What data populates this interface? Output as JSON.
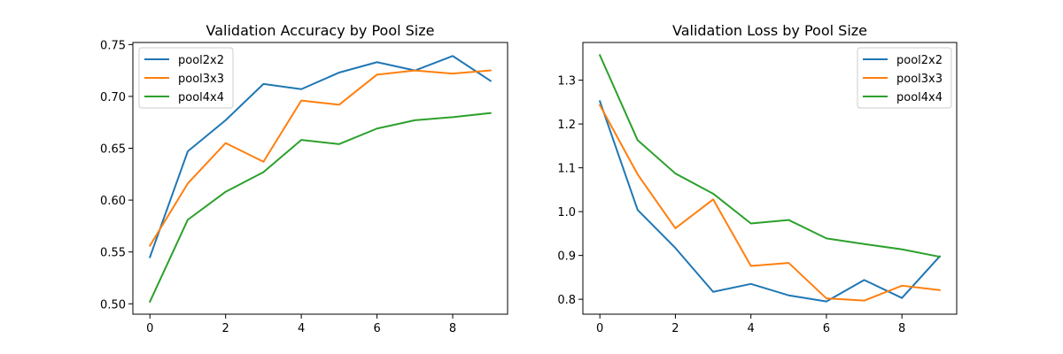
{
  "chart_data": [
    {
      "type": "line",
      "title": "Validation Accuracy by Pool Size",
      "xlabel": "",
      "ylabel": "",
      "x": [
        0,
        1,
        2,
        3,
        4,
        5,
        6,
        7,
        8,
        9
      ],
      "xlim": [
        -0.45,
        9.45
      ],
      "ylim": [
        0.49,
        0.752
      ],
      "xticks": [
        0,
        2,
        4,
        6,
        8
      ],
      "yticks": [
        0.5,
        0.55,
        0.6,
        0.65,
        0.7,
        0.75
      ],
      "ytick_labels": [
        "0.50",
        "0.55",
        "0.60",
        "0.65",
        "0.70",
        "0.75"
      ],
      "grid": false,
      "legend_position": "upper-left",
      "series": [
        {
          "name": "pool2x2",
          "color": "#1f77b4",
          "values": [
            0.545,
            0.647,
            0.677,
            0.712,
            0.707,
            0.723,
            0.733,
            0.725,
            0.739,
            0.715
          ]
        },
        {
          "name": "pool3x3",
          "color": "#ff7f0e",
          "values": [
            0.556,
            0.616,
            0.655,
            0.637,
            0.696,
            0.692,
            0.721,
            0.725,
            0.722,
            0.725
          ]
        },
        {
          "name": "pool4x4",
          "color": "#2ca02c",
          "values": [
            0.502,
            0.581,
            0.608,
            0.627,
            0.658,
            0.654,
            0.669,
            0.677,
            0.68,
            0.684
          ]
        }
      ]
    },
    {
      "type": "line",
      "title": "Validation Loss by Pool Size",
      "xlabel": "",
      "ylabel": "",
      "x": [
        0,
        1,
        2,
        3,
        4,
        5,
        6,
        7,
        8,
        9
      ],
      "xlim": [
        -0.45,
        9.45
      ],
      "ylim": [
        0.766,
        1.386
      ],
      "xticks": [
        0,
        2,
        4,
        6,
        8
      ],
      "yticks": [
        0.8,
        0.9,
        1.0,
        1.1,
        1.2,
        1.3
      ],
      "ytick_labels": [
        "0.8",
        "0.9",
        "1.0",
        "1.1",
        "1.2",
        "1.3"
      ],
      "grid": false,
      "legend_position": "upper-right",
      "series": [
        {
          "name": "pool2x2",
          "color": "#1f77b4",
          "values": [
            1.252,
            1.004,
            0.917,
            0.817,
            0.835,
            0.809,
            0.795,
            0.844,
            0.803,
            0.898
          ]
        },
        {
          "name": "pool3x3",
          "color": "#ff7f0e",
          "values": [
            1.243,
            1.085,
            0.962,
            1.028,
            0.876,
            0.883,
            0.802,
            0.797,
            0.831,
            0.821
          ]
        },
        {
          "name": "pool4x4",
          "color": "#2ca02c",
          "values": [
            1.357,
            1.163,
            1.087,
            1.041,
            0.973,
            0.981,
            0.939,
            0.926,
            0.914,
            0.897
          ]
        }
      ]
    }
  ]
}
